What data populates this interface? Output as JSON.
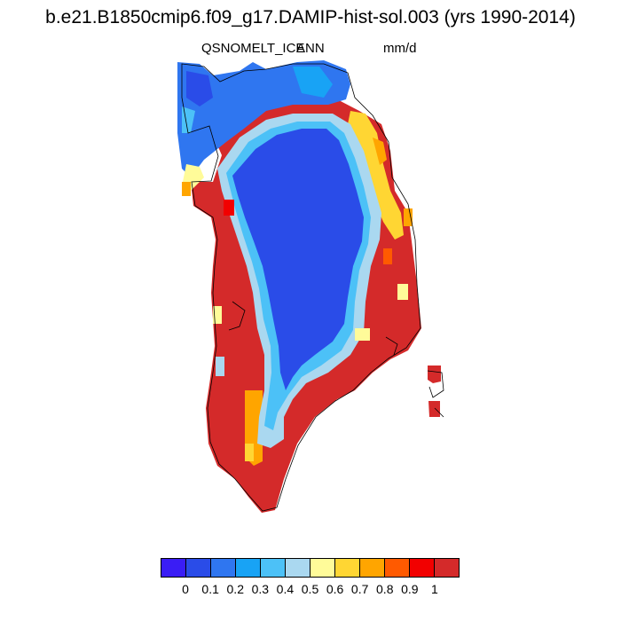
{
  "title": "b.e21.B1850cmip6.f09_g17.DAMIP-hist-sol.003 (yrs 1990-2014)",
  "variable": "QSNOMELT_ICE",
  "season": "ANN",
  "units": "mm/d",
  "colorbar": {
    "colors": [
      "#3a1df5",
      "#2a4ce8",
      "#2f76f0",
      "#18a3f5",
      "#4cc1f7",
      "#aad8f0",
      "#fffb99",
      "#ffd633",
      "#ffa500",
      "#ff5a00",
      "#f20000",
      "#d42a2a"
    ],
    "labels": [
      "0",
      "0.1",
      "0.2",
      "0.3",
      "0.4",
      "0.5",
      "0.6",
      "0.7",
      "0.8",
      "0.9",
      "1"
    ]
  }
}
